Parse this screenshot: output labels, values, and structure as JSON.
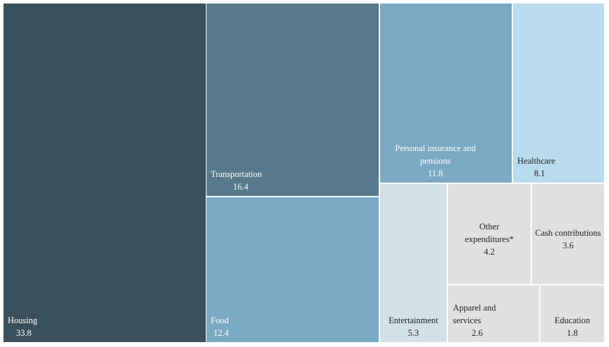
{
  "chart_data": {
    "type": "treemap",
    "title": "",
    "items": [
      {
        "name": "Housing",
        "value": 33.8,
        "color": "#3a505c",
        "text_color": "#ffffff"
      },
      {
        "name": "Transportation",
        "value": 16.4,
        "color": "#567a8c",
        "text_color": "#ffffff"
      },
      {
        "name": "Food",
        "value": 12.4,
        "color": "#7aa9c3",
        "text_color": "#ffffff"
      },
      {
        "name": "Personal insurance and pensions",
        "value": 11.8,
        "color": "#7aa9c3",
        "text_color": "#ffffff"
      },
      {
        "name": "Healthcare",
        "value": 8.1,
        "color": "#b8dbee",
        "text_color": "#222222"
      },
      {
        "name": "Entertainment",
        "value": 5.3,
        "color": "#d2e0e8",
        "text_color": "#222222"
      },
      {
        "name": "Other expenditures*",
        "value": 4.2,
        "color": "#e0e0e0",
        "text_color": "#222222"
      },
      {
        "name": "Cash contributions",
        "value": 3.6,
        "color": "#e0e0e0",
        "text_color": "#222222"
      },
      {
        "name": "Apparel and services",
        "value": 2.6,
        "color": "#e0e0e0",
        "text_color": "#222222"
      },
      {
        "name": "Education",
        "value": 1.8,
        "color": "#e0e0e0",
        "text_color": "#222222"
      }
    ]
  }
}
